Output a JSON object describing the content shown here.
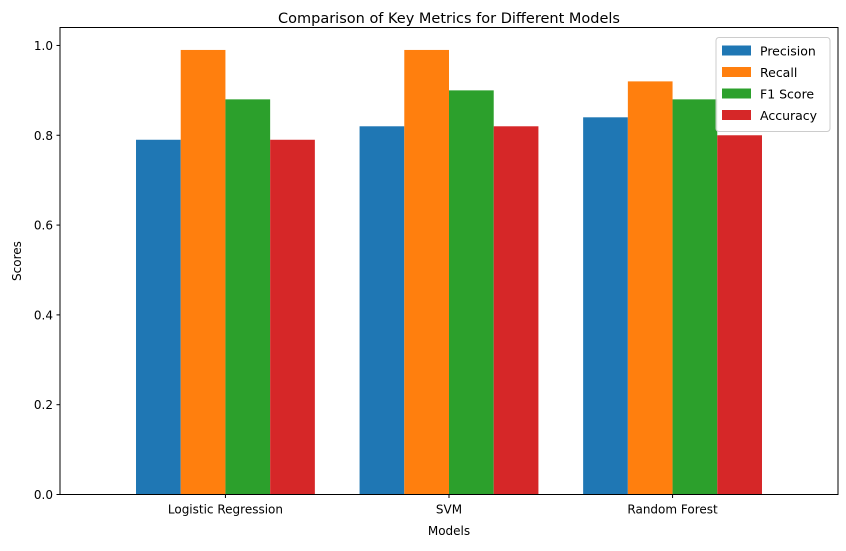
{
  "chart_data": {
    "type": "bar",
    "title": "Comparison of Key Metrics for Different Models",
    "xlabel": "Models",
    "ylabel": "Scores",
    "categories": [
      "Logistic Regression",
      "SVM",
      "Random Forest"
    ],
    "series": [
      {
        "name": "Precision",
        "color": "#1f77b4",
        "values": [
          0.79,
          0.82,
          0.84
        ]
      },
      {
        "name": "Recall",
        "color": "#ff7f0e",
        "values": [
          0.99,
          0.99,
          0.92
        ]
      },
      {
        "name": "F1 Score",
        "color": "#2ca02c",
        "values": [
          0.88,
          0.9,
          0.88
        ]
      },
      {
        "name": "Accuracy",
        "color": "#d62728",
        "values": [
          0.79,
          0.82,
          0.8
        ]
      }
    ],
    "ylim": [
      0,
      1.04
    ],
    "yticks": [
      "0.0",
      "0.2",
      "0.4",
      "0.6",
      "0.8",
      "1.0"
    ],
    "grid": false,
    "legend_position": "top-right"
  }
}
